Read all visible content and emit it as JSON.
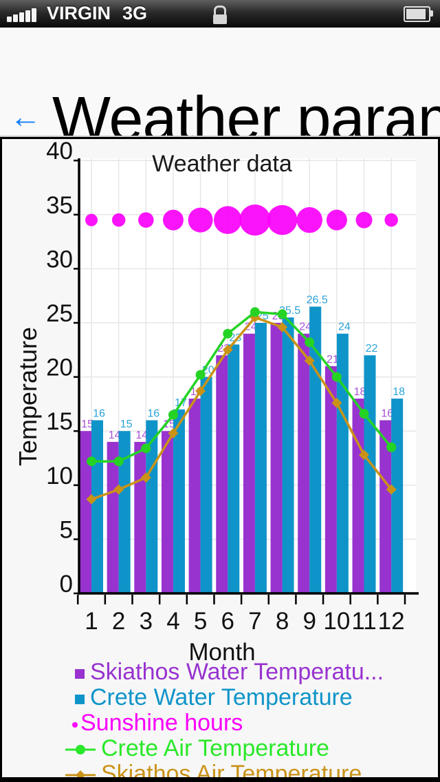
{
  "status_bar": {
    "carrier": "VIRGIN",
    "network": "3G",
    "signal_icon": "signal-strength-icon",
    "lock_icon": "lock-icon",
    "battery_icon": "battery-icon"
  },
  "header": {
    "back_glyph": "←",
    "title": "Weather param"
  },
  "chart_data": {
    "type": "mixed",
    "title": "Weather data",
    "xlabel": "Month",
    "ylabel": "Temperature",
    "x": [
      1,
      2,
      3,
      4,
      5,
      6,
      7,
      8,
      9,
      10,
      11,
      12
    ],
    "ylim": [
      0,
      40
    ],
    "ytick_step": 5,
    "grid": true,
    "legend_position": "bottom",
    "series": [
      {
        "name": "Skiathos Water Temperature",
        "legend_label": "Skiathos Water Temperatu...",
        "type": "bar",
        "color": "#9833cf",
        "label_color": "#a750d8",
        "value_labels": true,
        "values": [
          15,
          14,
          14,
          15,
          18,
          22,
          24,
          25,
          24,
          21,
          18,
          16
        ]
      },
      {
        "name": "Crete Water Temperature",
        "legend_label": "Crete Water Temperature",
        "type": "bar",
        "color": "#0f94c9",
        "label_color": "#2aa2d6",
        "value_labels": true,
        "values": [
          16,
          15,
          16,
          17,
          20,
          23,
          25,
          25.5,
          26.5,
          24,
          22,
          18
        ]
      },
      {
        "name": "Sunshine hours",
        "legend_label": "Sunshine hours",
        "type": "bubble",
        "color": "#fa00fa",
        "y_position": 34.5,
        "values": [
          4,
          4.5,
          5.5,
          8,
          10,
          11.5,
          13,
          12.5,
          10.5,
          8,
          6,
          4.5
        ]
      },
      {
        "name": "Crete Air Temperature",
        "legend_label": "Crete Air Temperature",
        "type": "line",
        "marker": "circle",
        "color": "#25d325",
        "legend_color": "#2ae82a",
        "values": [
          12.2,
          12.2,
          13.4,
          16.5,
          20.2,
          24,
          26,
          25.8,
          23.2,
          20,
          16.6,
          13.5
        ]
      },
      {
        "name": "Skiathos Air Temperature",
        "legend_label": "Skiathos Air Temperature",
        "type": "line",
        "marker": "diamond",
        "color": "#ca9318",
        "values": [
          8.7,
          9.6,
          10.7,
          14.8,
          18.7,
          22.5,
          25.5,
          24.6,
          21.5,
          17.6,
          12.8,
          9.6
        ]
      }
    ]
  }
}
